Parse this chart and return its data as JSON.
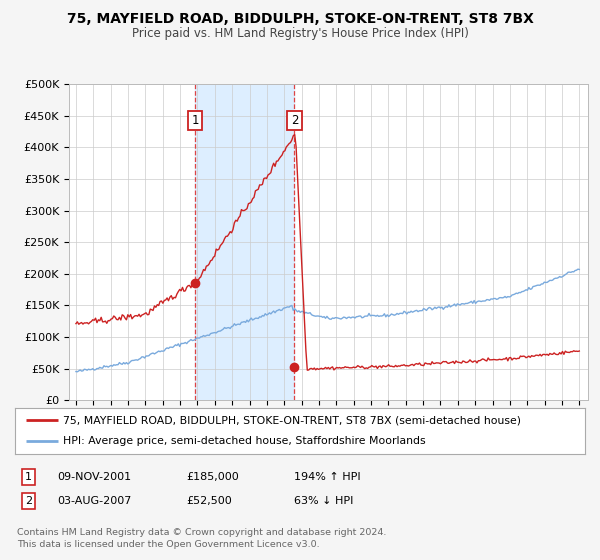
{
  "title": "75, MAYFIELD ROAD, BIDDULPH, STOKE-ON-TRENT, ST8 7BX",
  "subtitle": "Price paid vs. HM Land Registry's House Price Index (HPI)",
  "ylim": [
    0,
    500000
  ],
  "yticks": [
    0,
    50000,
    100000,
    150000,
    200000,
    250000,
    300000,
    350000,
    400000,
    450000,
    500000
  ],
  "ytick_labels": [
    "£0",
    "£50K",
    "£100K",
    "£150K",
    "£200K",
    "£250K",
    "£300K",
    "£350K",
    "£400K",
    "£450K",
    "£500K"
  ],
  "hpi_color": "#7aaadd",
  "price_color": "#cc2222",
  "sale1_date": 2001.86,
  "sale1_price": 185000,
  "sale2_date": 2007.59,
  "sale2_price": 52500,
  "vline_color": "#dd4444",
  "shade_color": "#ddeeff",
  "legend_label_price": "75, MAYFIELD ROAD, BIDDULPH, STOKE-ON-TRENT, ST8 7BX (semi-detached house)",
  "legend_label_hpi": "HPI: Average price, semi-detached house, Staffordshire Moorlands",
  "table_row1": [
    "1",
    "09-NOV-2001",
    "£185,000",
    "194% ↑ HPI"
  ],
  "table_row2": [
    "2",
    "03-AUG-2007",
    "£52,500",
    "63% ↓ HPI"
  ],
  "footnote": "Contains HM Land Registry data © Crown copyright and database right 2024.\nThis data is licensed under the Open Government Licence v3.0.",
  "background_color": "#f5f5f5",
  "plot_bg_color": "#ffffff",
  "grid_color": "#cccccc"
}
